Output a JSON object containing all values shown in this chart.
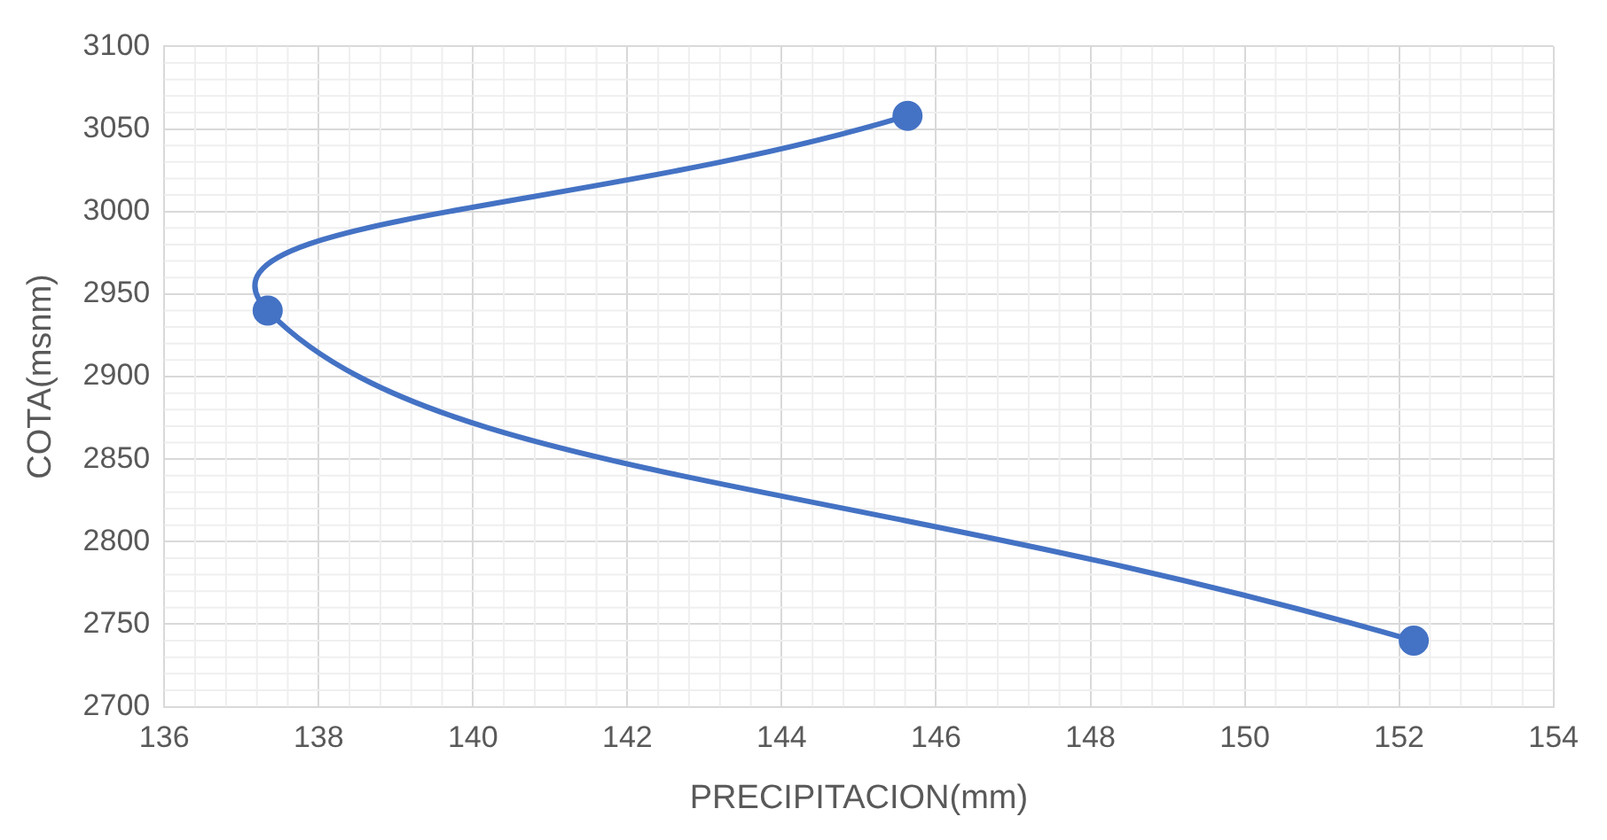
{
  "chart_data": {
    "type": "line",
    "xlabel": "PRECIPITACION(mm)",
    "ylabel": "COTA(msnm)",
    "x": [
      145.63,
      137.34,
      152.19
    ],
    "series": [
      {
        "color": "#4472c4",
        "values": [
          3058,
          2940,
          2740
        ]
      }
    ],
    "xlim": [
      136,
      154
    ],
    "xticks": [
      136,
      138,
      140,
      142,
      144,
      146,
      148,
      150,
      152,
      154
    ],
    "ylim": [
      2700,
      3100
    ],
    "yticks": [
      2700,
      2750,
      2800,
      2850,
      2900,
      2950,
      3000,
      3050,
      3100
    ],
    "grid": true,
    "marker": "circle",
    "line_style": "solid",
    "legend": false
  }
}
